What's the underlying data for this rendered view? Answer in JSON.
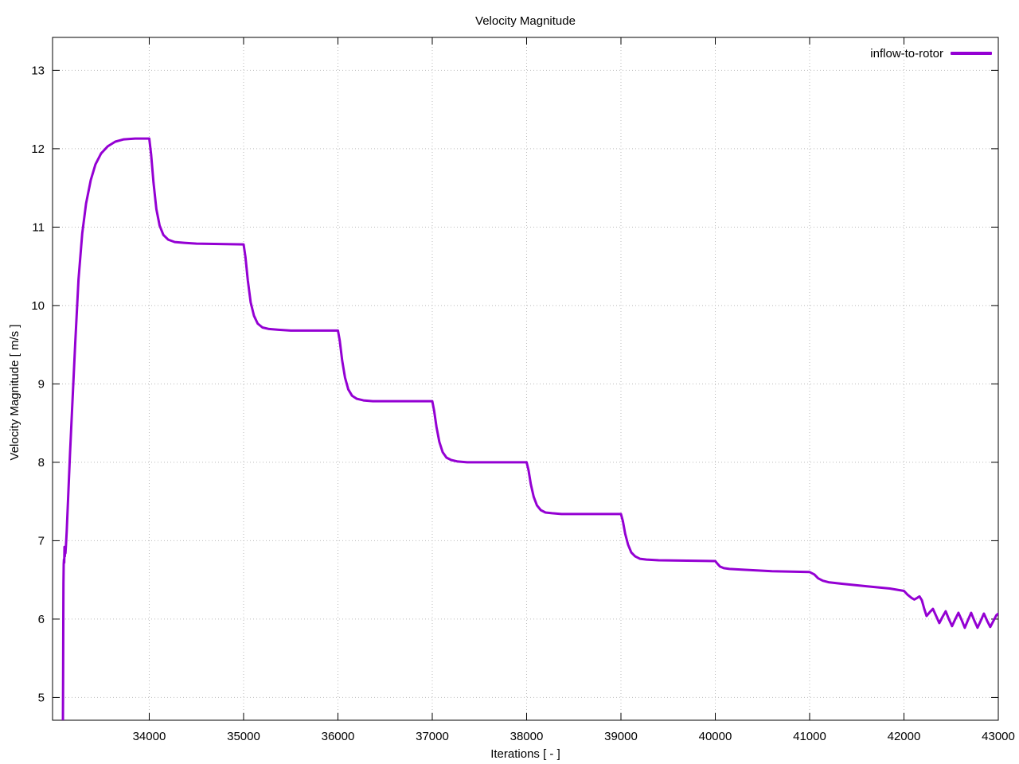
{
  "chart_data": {
    "type": "line",
    "title": "Velocity Magnitude",
    "xlabel": "Iterations [ - ]",
    "ylabel": "Velocity Magnitude [ m/s ]",
    "xlim": [
      32975,
      43000
    ],
    "ylim": [
      4.71,
      13.42
    ],
    "x_ticks": [
      34000,
      35000,
      36000,
      37000,
      38000,
      39000,
      40000,
      41000,
      42000,
      43000
    ],
    "y_ticks": [
      5,
      6,
      7,
      8,
      9,
      10,
      11,
      12,
      13
    ],
    "grid": "dotted",
    "legend_position": "top-right-inside",
    "background_color": "#ffffff",
    "axis_color": "#000000",
    "grid_color": "#bbbbbb",
    "series": [
      {
        "name": "inflow-to-rotor",
        "color": "#9400d3",
        "points": [
          [
            33085,
            4.6
          ],
          [
            33087,
            5.3
          ],
          [
            33089,
            5.95
          ],
          [
            33091,
            6.45
          ],
          [
            33093,
            6.7
          ],
          [
            33096,
            6.76
          ],
          [
            33099,
            6.72
          ],
          [
            33102,
            6.92
          ],
          [
            33105,
            6.8
          ],
          [
            33108,
            6.9
          ],
          [
            33112,
            6.84
          ],
          [
            33118,
            6.95
          ],
          [
            33125,
            7.12
          ],
          [
            33140,
            7.55
          ],
          [
            33160,
            8.1
          ],
          [
            33185,
            8.75
          ],
          [
            33215,
            9.5
          ],
          [
            33250,
            10.33
          ],
          [
            33290,
            10.92
          ],
          [
            33330,
            11.3
          ],
          [
            33380,
            11.6
          ],
          [
            33430,
            11.8
          ],
          [
            33490,
            11.94
          ],
          [
            33560,
            12.03
          ],
          [
            33640,
            12.09
          ],
          [
            33730,
            12.12
          ],
          [
            33850,
            12.13
          ],
          [
            34000,
            12.13
          ],
          [
            34020,
            11.93
          ],
          [
            34045,
            11.57
          ],
          [
            34075,
            11.23
          ],
          [
            34110,
            11.02
          ],
          [
            34150,
            10.9
          ],
          [
            34200,
            10.84
          ],
          [
            34270,
            10.81
          ],
          [
            34370,
            10.8
          ],
          [
            34500,
            10.79
          ],
          [
            35000,
            10.78
          ],
          [
            35020,
            10.62
          ],
          [
            35045,
            10.32
          ],
          [
            35075,
            10.04
          ],
          [
            35110,
            9.87
          ],
          [
            35150,
            9.77
          ],
          [
            35200,
            9.72
          ],
          [
            35270,
            9.7
          ],
          [
            35370,
            9.69
          ],
          [
            35500,
            9.68
          ],
          [
            36000,
            9.68
          ],
          [
            36020,
            9.55
          ],
          [
            36045,
            9.3
          ],
          [
            36075,
            9.08
          ],
          [
            36110,
            8.93
          ],
          [
            36150,
            8.85
          ],
          [
            36200,
            8.81
          ],
          [
            36270,
            8.79
          ],
          [
            36370,
            8.78
          ],
          [
            37000,
            8.78
          ],
          [
            37020,
            8.66
          ],
          [
            37045,
            8.45
          ],
          [
            37075,
            8.26
          ],
          [
            37110,
            8.13
          ],
          [
            37150,
            8.06
          ],
          [
            37200,
            8.03
          ],
          [
            37270,
            8.01
          ],
          [
            37370,
            8.0
          ],
          [
            38000,
            8.0
          ],
          [
            38020,
            7.9
          ],
          [
            38045,
            7.72
          ],
          [
            38075,
            7.56
          ],
          [
            38110,
            7.45
          ],
          [
            38150,
            7.39
          ],
          [
            38200,
            7.36
          ],
          [
            38270,
            7.35
          ],
          [
            38370,
            7.34
          ],
          [
            39000,
            7.34
          ],
          [
            39020,
            7.25
          ],
          [
            39045,
            7.09
          ],
          [
            39075,
            6.95
          ],
          [
            39110,
            6.85
          ],
          [
            39150,
            6.8
          ],
          [
            39200,
            6.77
          ],
          [
            39270,
            6.76
          ],
          [
            39400,
            6.75
          ],
          [
            40000,
            6.74
          ],
          [
            40020,
            6.71
          ],
          [
            40050,
            6.67
          ],
          [
            40090,
            6.65
          ],
          [
            40150,
            6.64
          ],
          [
            40300,
            6.63
          ],
          [
            40600,
            6.61
          ],
          [
            41000,
            6.6
          ],
          [
            41050,
            6.57
          ],
          [
            41090,
            6.52
          ],
          [
            41140,
            6.49
          ],
          [
            41200,
            6.47
          ],
          [
            41350,
            6.45
          ],
          [
            41600,
            6.42
          ],
          [
            41850,
            6.39
          ],
          [
            42000,
            6.36
          ],
          [
            42040,
            6.31
          ],
          [
            42080,
            6.27
          ],
          [
            42110,
            6.25
          ],
          [
            42140,
            6.27
          ],
          [
            42165,
            6.29
          ],
          [
            42190,
            6.24
          ],
          [
            42215,
            6.13
          ],
          [
            42240,
            6.04
          ],
          [
            42274,
            6.09
          ],
          [
            42307,
            6.13
          ],
          [
            42341,
            6.04
          ],
          [
            42375,
            5.95
          ],
          [
            42409,
            6.03
          ],
          [
            42442,
            6.1
          ],
          [
            42476,
            6.0
          ],
          [
            42510,
            5.91
          ],
          [
            42544,
            6.0
          ],
          [
            42577,
            6.08
          ],
          [
            42611,
            5.99
          ],
          [
            42645,
            5.89
          ],
          [
            42679,
            5.99
          ],
          [
            42712,
            6.08
          ],
          [
            42746,
            5.98
          ],
          [
            42780,
            5.89
          ],
          [
            42814,
            5.98
          ],
          [
            42847,
            6.07
          ],
          [
            42881,
            5.98
          ],
          [
            42915,
            5.9
          ],
          [
            42949,
            5.98
          ],
          [
            42980,
            6.05
          ],
          [
            43000,
            6.07
          ]
        ]
      }
    ]
  }
}
